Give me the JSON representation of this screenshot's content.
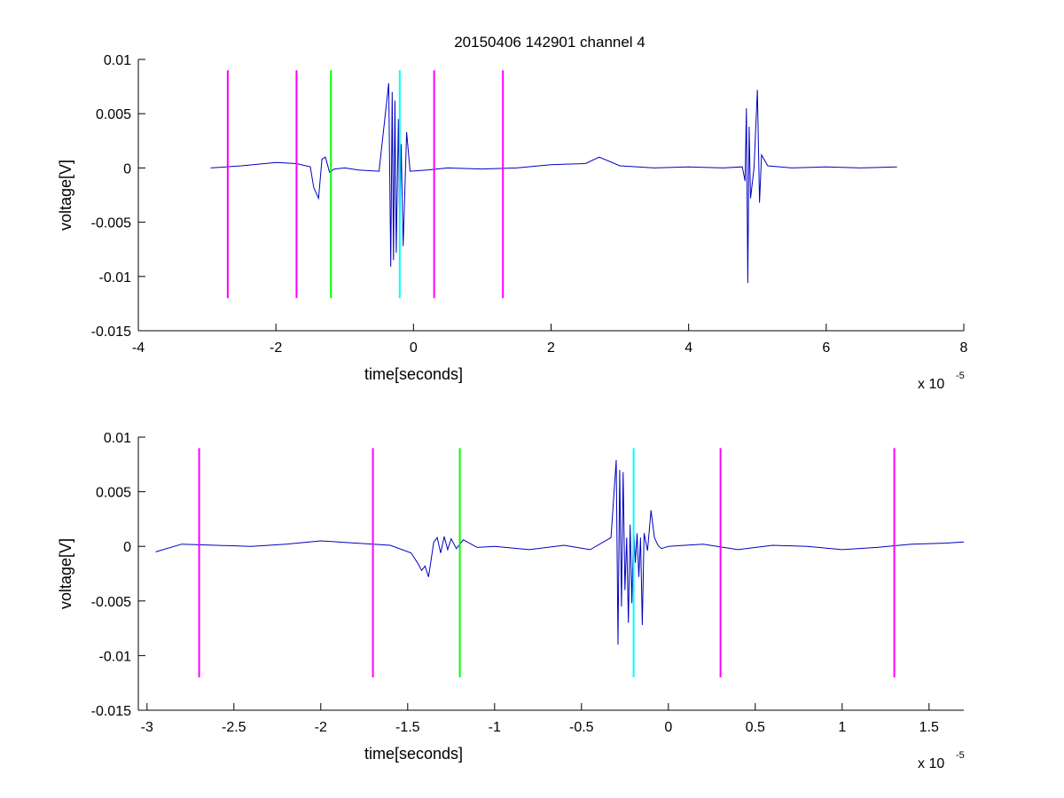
{
  "figure_title": "20150406 142901 channel 4",
  "colors": {
    "magenta": "#ff00ff",
    "green": "#00ff00",
    "cyan": "#00ffff",
    "trace": "#0000bf",
    "axes": "#000000"
  },
  "chart_data": [
    {
      "type": "line",
      "title": "20150406 142901 channel 4",
      "xlabel": "time[seconds]",
      "ylabel": "voltage[V]",
      "x_multiplier_label": "x 10",
      "x_multiplier_exponent": "-5",
      "xlim": [
        -4e-05,
        8e-05
      ],
      "ylim": [
        -0.015,
        0.01
      ],
      "xticks": [
        -4e-05,
        -2e-05,
        0,
        2e-05,
        4e-05,
        6e-05,
        8e-05
      ],
      "xtick_labels": [
        "-4",
        "-2",
        "0",
        "2",
        "4",
        "6",
        "8"
      ],
      "yticks": [
        -0.015,
        -0.01,
        -0.005,
        0,
        0.005,
        0.01
      ],
      "ytick_labels": [
        "-0.015",
        "-0.01",
        "-0.005",
        "0",
        "0.005",
        "0.01"
      ],
      "series": [
        {
          "color": "#0000bf",
          "x": [
            -2.95e-05,
            -2.5e-05,
            -2e-05,
            -1.7e-05,
            -1.5e-05,
            -1.45e-05,
            -1.38e-05,
            -1.33e-05,
            -1.28e-05,
            -1.22e-05,
            -1.15e-05,
            -1e-05,
            -8e-06,
            -5e-06,
            -3.6e-06,
            -3.3e-06,
            -3.1e-06,
            -2.9e-06,
            -2.7e-06,
            -2.5e-06,
            -2.2e-06,
            -2e-06,
            -1.8e-06,
            -1.5e-06,
            -1e-06,
            -5e-07,
            2e-06,
            5e-06,
            1e-05,
            1.5e-05,
            2e-05,
            2.5e-05,
            2.7e-05,
            3e-05,
            3.5e-05,
            4e-05,
            4.5e-05,
            4.78e-05,
            4.82e-05,
            4.84e-05,
            4.86e-05,
            4.88e-05,
            4.9e-05,
            4.95e-05,
            5e-05,
            5.03e-05,
            5.06e-05,
            5.15e-05,
            5.5e-05,
            6e-05,
            6.5e-05,
            7.03e-05
          ],
          "y": [
            0.0,
            0.0002,
            0.0005,
            0.0004,
            0.0001,
            -0.0018,
            -0.0028,
            0.0008,
            0.001,
            -0.0004,
            -0.0001,
            0.0,
            -0.0002,
            -0.0003,
            0.0078,
            -0.0091,
            0.007,
            -0.0085,
            0.0062,
            -0.0078,
            0.0045,
            -0.0062,
            0.0022,
            -0.0072,
            0.0033,
            -0.0003,
            -0.0002,
            0.0,
            -0.0001,
            0.0,
            0.0003,
            0.0004,
            0.001,
            0.0002,
            0.0,
            0.0001,
            0.0,
            0.0001,
            -0.0012,
            0.0055,
            -0.0106,
            0.0038,
            -0.0028,
            0.0,
            0.0072,
            -0.0032,
            0.0012,
            0.0002,
            0.0,
            0.0001,
            0.0,
            0.0001
          ]
        }
      ],
      "vlines": [
        {
          "x": -2.7e-05,
          "color": "#ff00ff"
        },
        {
          "x": -1.7e-05,
          "color": "#ff00ff"
        },
        {
          "x": -1.2e-05,
          "color": "#00ff00"
        },
        {
          "x": -2e-06,
          "color": "#00ffff"
        },
        {
          "x": 3e-06,
          "color": "#ff00ff"
        },
        {
          "x": 1.3e-05,
          "color": "#ff00ff"
        }
      ],
      "vline_range": [
        -0.012,
        0.009
      ],
      "grid": false
    },
    {
      "type": "line",
      "title": "",
      "xlabel": "time[seconds]",
      "ylabel": "voltage[V]",
      "x_multiplier_label": "x 10",
      "x_multiplier_exponent": "-5",
      "xlim": [
        -3.05e-05,
        1.7e-05
      ],
      "ylim": [
        -0.015,
        0.01
      ],
      "xticks": [
        -3e-05,
        -2.5e-05,
        -2e-05,
        -1.5e-05,
        -1e-05,
        -5e-06,
        0,
        5e-06,
        1e-05,
        1.5e-05
      ],
      "xtick_labels": [
        "-3",
        "-2.5",
        "-2",
        "-1.5",
        "-1",
        "-0.5",
        "0",
        "0.5",
        "1",
        "1.5"
      ],
      "yticks": [
        -0.015,
        -0.01,
        -0.005,
        0,
        0.005,
        0.01
      ],
      "ytick_labels": [
        "-0.015",
        "-0.01",
        "-0.005",
        "0",
        "0.005",
        "0.01"
      ],
      "series": [
        {
          "color": "#0000bf",
          "x": [
            -2.95e-05,
            -2.8e-05,
            -2.6e-05,
            -2.4e-05,
            -2.2e-05,
            -2e-05,
            -1.8e-05,
            -1.6e-05,
            -1.48e-05,
            -1.44e-05,
            -1.42e-05,
            -1.4e-05,
            -1.38e-05,
            -1.35e-05,
            -1.33e-05,
            -1.31e-05,
            -1.29e-05,
            -1.27e-05,
            -1.25e-05,
            -1.22e-05,
            -1.18e-05,
            -1.1e-05,
            -1e-05,
            -8e-06,
            -6e-06,
            -4.5e-06,
            -3.3e-06,
            -3e-06,
            -2.9e-06,
            -2.8e-06,
            -2.7e-06,
            -2.6e-06,
            -2.5e-06,
            -2.4e-06,
            -2.3e-06,
            -2.2e-06,
            -2.1e-06,
            -2e-06,
            -1.9e-06,
            -1.8e-06,
            -1.7e-06,
            -1.6e-06,
            -1.5e-06,
            -1.4e-06,
            -1.2e-06,
            -1e-06,
            -8e-07,
            -6e-07,
            -4e-07,
            0.0,
            2e-06,
            4e-06,
            6e-06,
            8e-06,
            1e-05,
            1.2e-05,
            1.4e-05,
            1.6e-05,
            1.7e-05
          ],
          "y": [
            -0.0005,
            0.0002,
            0.0001,
            0.0,
            0.0002,
            0.0005,
            0.0003,
            0.0001,
            -0.0006,
            -0.0016,
            -0.0022,
            -0.0018,
            -0.0028,
            0.0004,
            0.0008,
            -0.0006,
            0.0009,
            -0.0003,
            0.0007,
            -0.0002,
            0.0006,
            -0.0001,
            0.0,
            -0.0003,
            0.0001,
            -0.0003,
            0.0008,
            0.0079,
            -0.009,
            0.007,
            -0.0055,
            0.0068,
            -0.004,
            0.0008,
            -0.007,
            0.002,
            -0.0052,
            0.0018,
            -0.0015,
            0.0012,
            -0.0028,
            0.0008,
            -0.0072,
            0.0012,
            -0.0004,
            0.0033,
            0.0008,
            0.0001,
            -0.0002,
            0.0,
            0.0002,
            -0.0003,
            0.0001,
            0.0,
            -0.0003,
            -0.0001,
            0.0002,
            0.0003,
            0.0004
          ]
        }
      ],
      "vlines": [
        {
          "x": -2.7e-05,
          "color": "#ff00ff"
        },
        {
          "x": -1.7e-05,
          "color": "#ff00ff"
        },
        {
          "x": -1.2e-05,
          "color": "#00ff00"
        },
        {
          "x": -2e-06,
          "color": "#00ffff"
        },
        {
          "x": 3e-06,
          "color": "#ff00ff"
        },
        {
          "x": 1.3e-05,
          "color": "#ff00ff"
        }
      ],
      "vline_range": [
        -0.012,
        0.009
      ],
      "grid": false
    }
  ]
}
